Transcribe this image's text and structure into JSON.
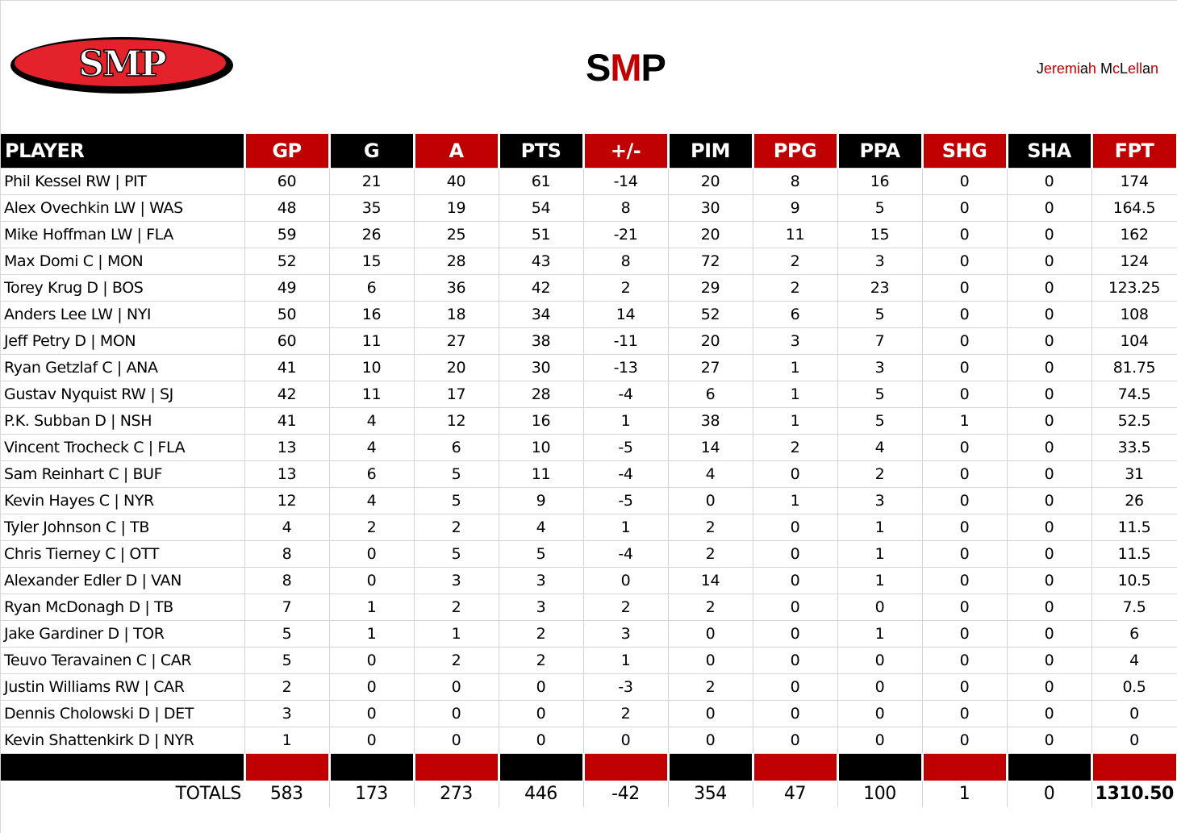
{
  "header": {
    "logo_text": "SMP",
    "title_parts": [
      {
        "text": "S",
        "color": "#000000"
      },
      {
        "text": "M",
        "color": "#c00000"
      },
      {
        "text": "P",
        "color": "#000000"
      }
    ],
    "author_parts": [
      "J",
      "eremi",
      "a",
      "h ",
      "M",
      "c",
      "L",
      "ell",
      "a",
      "n"
    ],
    "author": "Jeremiah McLellan"
  },
  "colors": {
    "red": "#c00000",
    "black": "#000000",
    "grid": "#d4d4d4"
  },
  "table": {
    "columns": [
      {
        "key": "player",
        "label": "PLAYER",
        "color": "black"
      },
      {
        "key": "gp",
        "label": "GP",
        "color": "red"
      },
      {
        "key": "g",
        "label": "G",
        "color": "black"
      },
      {
        "key": "a",
        "label": "A",
        "color": "red"
      },
      {
        "key": "pts",
        "label": "PTS",
        "color": "black"
      },
      {
        "key": "pm",
        "label": "+/-",
        "color": "red"
      },
      {
        "key": "pim",
        "label": "PIM",
        "color": "black"
      },
      {
        "key": "ppg",
        "label": "PPG",
        "color": "red"
      },
      {
        "key": "ppa",
        "label": "PPA",
        "color": "black"
      },
      {
        "key": "shg",
        "label": "SHG",
        "color": "red"
      },
      {
        "key": "sha",
        "label": "SHA",
        "color": "black"
      },
      {
        "key": "fpt",
        "label": "FPT",
        "color": "red"
      }
    ],
    "rows": [
      {
        "player": "Phil Kessel RW | PIT",
        "gp": "60",
        "g": "21",
        "a": "40",
        "pts": "61",
        "pm": "-14",
        "pim": "20",
        "ppg": "8",
        "ppa": "16",
        "shg": "0",
        "sha": "0",
        "fpt": "174"
      },
      {
        "player": "Alex Ovechkin LW | WAS",
        "gp": "48",
        "g": "35",
        "a": "19",
        "pts": "54",
        "pm": "8",
        "pim": "30",
        "ppg": "9",
        "ppa": "5",
        "shg": "0",
        "sha": "0",
        "fpt": "164.5"
      },
      {
        "player": "Mike Hoffman LW | FLA",
        "gp": "59",
        "g": "26",
        "a": "25",
        "pts": "51",
        "pm": "-21",
        "pim": "20",
        "ppg": "11",
        "ppa": "15",
        "shg": "0",
        "sha": "0",
        "fpt": "162"
      },
      {
        "player": "Max Domi C | MON",
        "gp": "52",
        "g": "15",
        "a": "28",
        "pts": "43",
        "pm": "8",
        "pim": "72",
        "ppg": "2",
        "ppa": "3",
        "shg": "0",
        "sha": "0",
        "fpt": "124"
      },
      {
        "player": "Torey Krug D | BOS",
        "gp": "49",
        "g": "6",
        "a": "36",
        "pts": "42",
        "pm": "2",
        "pim": "29",
        "ppg": "2",
        "ppa": "23",
        "shg": "0",
        "sha": "0",
        "fpt": "123.25"
      },
      {
        "player": "Anders Lee LW | NYI",
        "gp": "50",
        "g": "16",
        "a": "18",
        "pts": "34",
        "pm": "14",
        "pim": "52",
        "ppg": "6",
        "ppa": "5",
        "shg": "0",
        "sha": "0",
        "fpt": "108"
      },
      {
        "player": "Jeff Petry D | MON",
        "gp": "60",
        "g": "11",
        "a": "27",
        "pts": "38",
        "pm": "-11",
        "pim": "20",
        "ppg": "3",
        "ppa": "7",
        "shg": "0",
        "sha": "0",
        "fpt": "104"
      },
      {
        "player": "Ryan Getzlaf C | ANA",
        "gp": "41",
        "g": "10",
        "a": "20",
        "pts": "30",
        "pm": "-13",
        "pim": "27",
        "ppg": "1",
        "ppa": "3",
        "shg": "0",
        "sha": "0",
        "fpt": "81.75"
      },
      {
        "player": "Gustav Nyquist RW | SJ",
        "gp": "42",
        "g": "11",
        "a": "17",
        "pts": "28",
        "pm": "-4",
        "pim": "6",
        "ppg": "1",
        "ppa": "5",
        "shg": "0",
        "sha": "0",
        "fpt": "74.5"
      },
      {
        "player": "P.K. Subban D | NSH",
        "gp": "41",
        "g": "4",
        "a": "12",
        "pts": "16",
        "pm": "1",
        "pim": "38",
        "ppg": "1",
        "ppa": "5",
        "shg": "1",
        "sha": "0",
        "fpt": "52.5"
      },
      {
        "player": "Vincent Trocheck C | FLA",
        "gp": "13",
        "g": "4",
        "a": "6",
        "pts": "10",
        "pm": "-5",
        "pim": "14",
        "ppg": "2",
        "ppa": "4",
        "shg": "0",
        "sha": "0",
        "fpt": "33.5"
      },
      {
        "player": "Sam Reinhart C | BUF",
        "gp": "13",
        "g": "6",
        "a": "5",
        "pts": "11",
        "pm": "-4",
        "pim": "4",
        "ppg": "0",
        "ppa": "2",
        "shg": "0",
        "sha": "0",
        "fpt": "31"
      },
      {
        "player": "Kevin Hayes C | NYR",
        "gp": "12",
        "g": "4",
        "a": "5",
        "pts": "9",
        "pm": "-5",
        "pim": "0",
        "ppg": "1",
        "ppa": "3",
        "shg": "0",
        "sha": "0",
        "fpt": "26"
      },
      {
        "player": "Tyler Johnson C | TB",
        "gp": "4",
        "g": "2",
        "a": "2",
        "pts": "4",
        "pm": "1",
        "pim": "2",
        "ppg": "0",
        "ppa": "1",
        "shg": "0",
        "sha": "0",
        "fpt": "11.5"
      },
      {
        "player": "Chris Tierney C | OTT",
        "gp": "8",
        "g": "0",
        "a": "5",
        "pts": "5",
        "pm": "-4",
        "pim": "2",
        "ppg": "0",
        "ppa": "1",
        "shg": "0",
        "sha": "0",
        "fpt": "11.5"
      },
      {
        "player": "Alexander Edler D | VAN",
        "gp": "8",
        "g": "0",
        "a": "3",
        "pts": "3",
        "pm": "0",
        "pim": "14",
        "ppg": "0",
        "ppa": "1",
        "shg": "0",
        "sha": "0",
        "fpt": "10.5"
      },
      {
        "player": "Ryan McDonagh D | TB",
        "gp": "7",
        "g": "1",
        "a": "2",
        "pts": "3",
        "pm": "2",
        "pim": "2",
        "ppg": "0",
        "ppa": "0",
        "shg": "0",
        "sha": "0",
        "fpt": "7.5"
      },
      {
        "player": "Jake Gardiner D | TOR",
        "gp": "5",
        "g": "1",
        "a": "1",
        "pts": "2",
        "pm": "3",
        "pim": "0",
        "ppg": "0",
        "ppa": "1",
        "shg": "0",
        "sha": "0",
        "fpt": "6"
      },
      {
        "player": "Teuvo Teravainen C | CAR",
        "gp": "5",
        "g": "0",
        "a": "2",
        "pts": "2",
        "pm": "1",
        "pim": "0",
        "ppg": "0",
        "ppa": "0",
        "shg": "0",
        "sha": "0",
        "fpt": "4"
      },
      {
        "player": "Justin Williams RW | CAR",
        "gp": "2",
        "g": "0",
        "a": "0",
        "pts": "0",
        "pm": "-3",
        "pim": "2",
        "ppg": "0",
        "ppa": "0",
        "shg": "0",
        "sha": "0",
        "fpt": "0.5"
      },
      {
        "player": "Dennis Cholowski D | DET",
        "gp": "3",
        "g": "0",
        "a": "0",
        "pts": "0",
        "pm": "2",
        "pim": "0",
        "ppg": "0",
        "ppa": "0",
        "shg": "0",
        "sha": "0",
        "fpt": "0"
      },
      {
        "player": "Kevin Shattenkirk D | NYR",
        "gp": "1",
        "g": "0",
        "a": "0",
        "pts": "0",
        "pm": "0",
        "pim": "0",
        "ppg": "0",
        "ppa": "0",
        "shg": "0",
        "sha": "0",
        "fpt": "0"
      }
    ],
    "totals": {
      "player": "TOTALS",
      "gp": "583",
      "g": "173",
      "a": "273",
      "pts": "446",
      "pm": "-42",
      "pim": "354",
      "ppg": "47",
      "ppa": "100",
      "shg": "1",
      "sha": "0",
      "fpt": "1310.50"
    }
  }
}
